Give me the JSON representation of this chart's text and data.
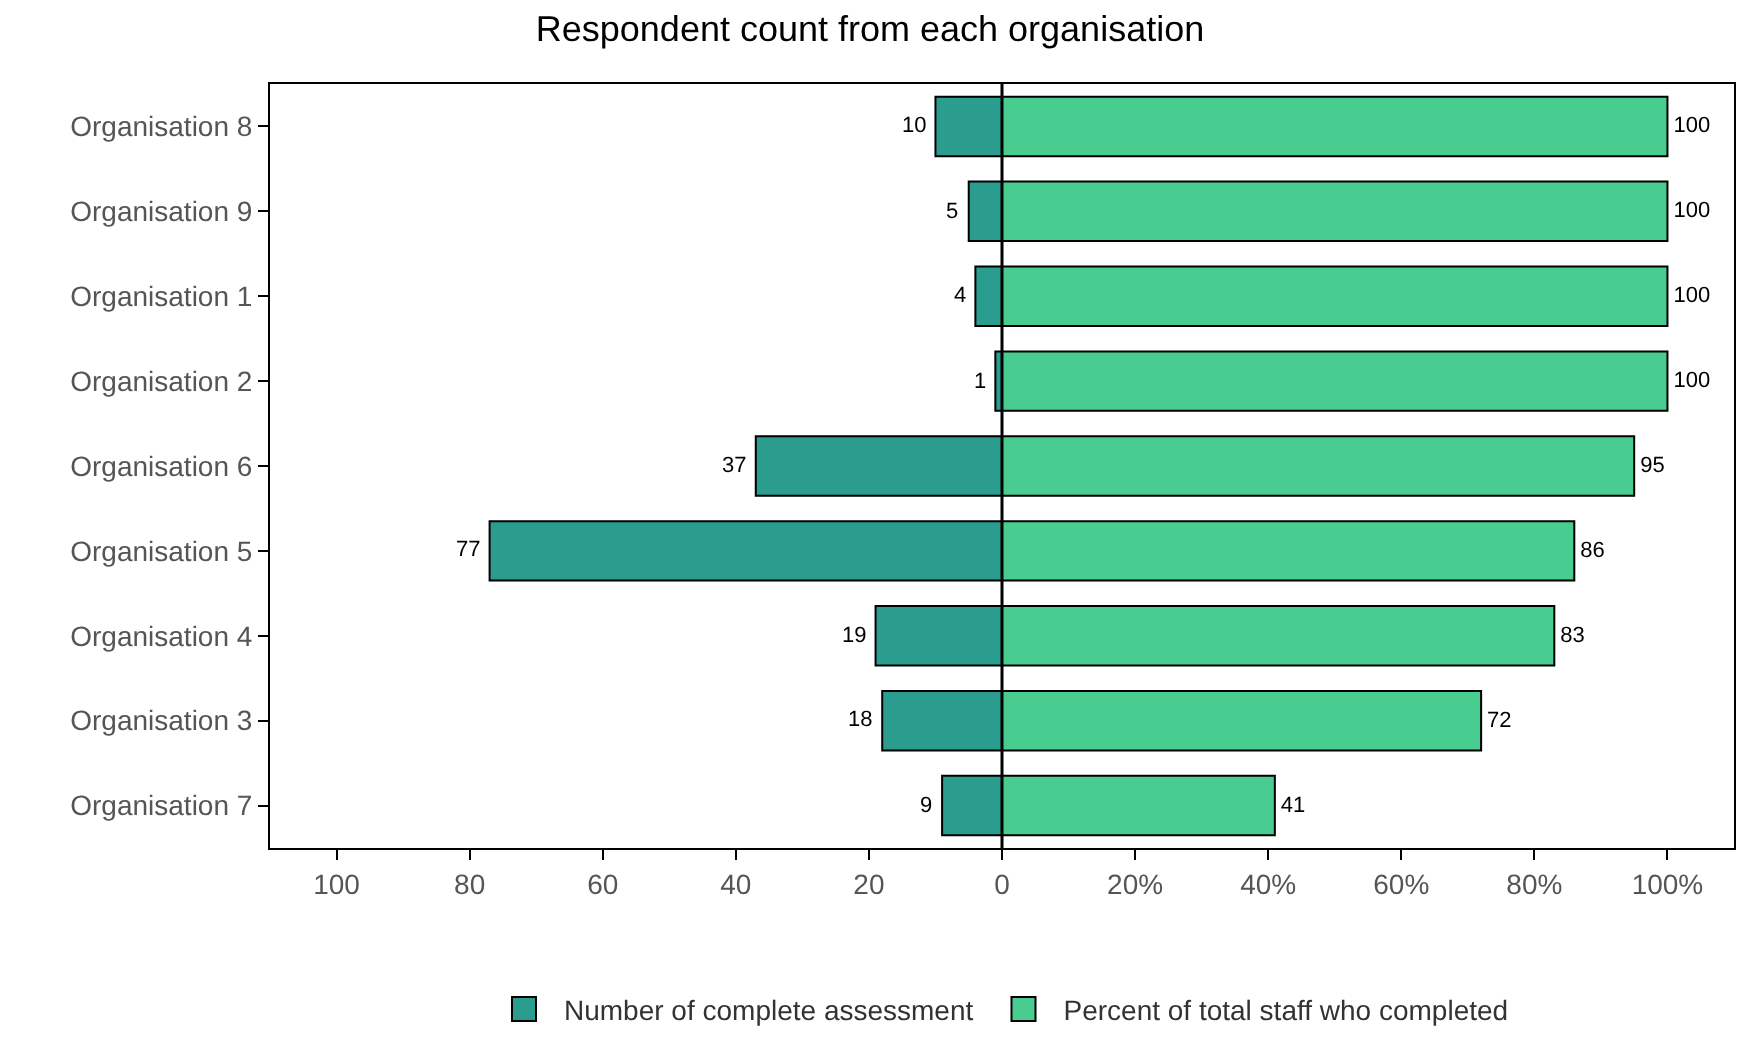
{
  "chart_data": {
    "type": "bar",
    "orientation": "horizontal",
    "title": "Respondent count from each organisation",
    "categories": [
      "Organisation 8",
      "Organisation 9",
      "Organisation 1",
      "Organisation 2",
      "Organisation 6",
      "Organisation 5",
      "Organisation 4",
      "Organisation 3",
      "Organisation 7"
    ],
    "series": [
      {
        "name": "Number of complete assessment",
        "color": "#2a9d8f",
        "base": [
          -10,
          -5,
          -4,
          -1,
          -37,
          -77,
          -19,
          -18,
          -9
        ],
        "values": [
          10,
          5,
          4,
          1,
          37,
          77,
          19,
          18,
          9
        ],
        "data_labels": true
      },
      {
        "name": "Percent of total staff who completed",
        "color": "#48cc90",
        "values": [
          100,
          100,
          100,
          100,
          95,
          86,
          83,
          72,
          41
        ],
        "data_labels": true
      }
    ],
    "xlim": [
      -110,
      110
    ],
    "xticks": [
      {
        "value": -100,
        "label": "100"
      },
      {
        "value": -80,
        "label": "80"
      },
      {
        "value": -60,
        "label": "60"
      },
      {
        "value": -40,
        "label": "40"
      },
      {
        "value": -20,
        "label": "20"
      },
      0,
      {
        "value": 20,
        "label": "20%"
      },
      {
        "value": 40,
        "label": "40%"
      },
      {
        "value": 60,
        "label": "60%"
      },
      {
        "value": 80,
        "label": "80%"
      },
      {
        "value": 100,
        "label": "100%"
      }
    ],
    "ref_lines": [
      {
        "axis": "x",
        "value": 0,
        "color": "#000000"
      }
    ],
    "grid": false,
    "legend": "bottom"
  }
}
